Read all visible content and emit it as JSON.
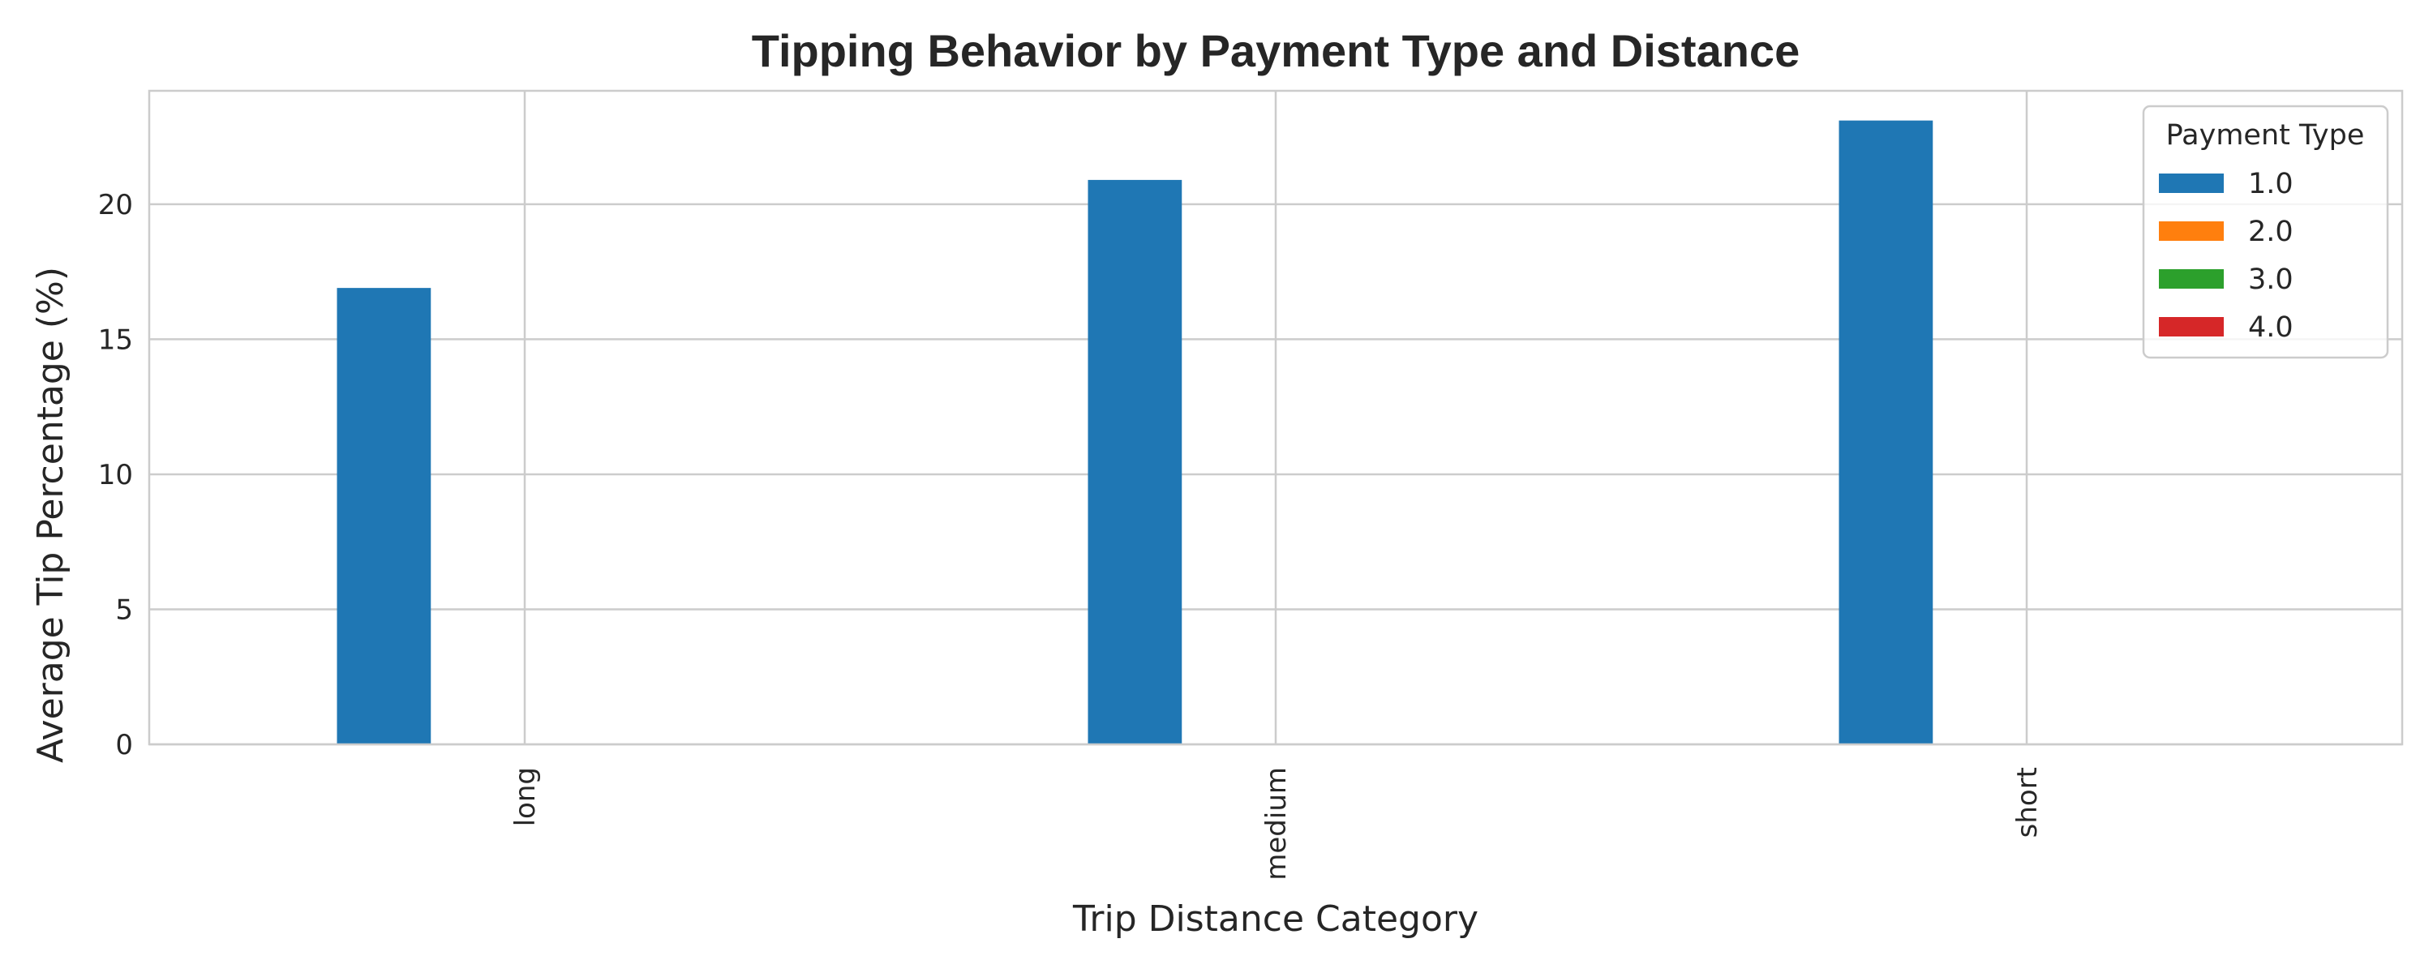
{
  "chart_data": {
    "type": "bar",
    "title": "Tipping Behavior by Payment Type and Distance",
    "xlabel": "Trip Distance Category",
    "ylabel": "Average Tip Percentage (%)",
    "categories": [
      "long",
      "medium",
      "short"
    ],
    "ylim": [
      0,
      24.2
    ],
    "yticks": [
      0,
      5,
      10,
      15,
      20
    ],
    "grid": true,
    "legend": {
      "title": "Payment Type",
      "placement": "top-right"
    },
    "series": [
      {
        "name": "1.0",
        "color": "#1f77b4",
        "values": [
          16.9,
          20.9,
          23.1
        ]
      },
      {
        "name": "2.0",
        "color": "#ff7f0e",
        "values": [
          0,
          0,
          0
        ]
      },
      {
        "name": "3.0",
        "color": "#2ca02c",
        "values": [
          0,
          0,
          0
        ]
      },
      {
        "name": "4.0",
        "color": "#d62728",
        "values": [
          0,
          0,
          0
        ]
      }
    ]
  }
}
